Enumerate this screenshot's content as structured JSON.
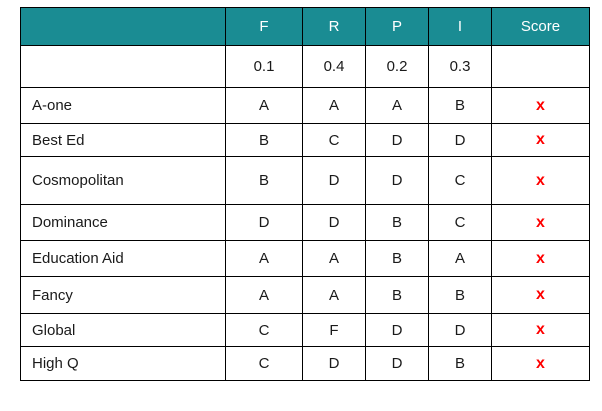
{
  "header": {
    "name": "",
    "columns": [
      "F",
      "R",
      "P",
      "I"
    ],
    "score": "Score"
  },
  "weights": {
    "name": "",
    "values": [
      "0.1",
      "0.4",
      "0.2",
      "0.3"
    ],
    "score": ""
  },
  "rows": [
    {
      "name": "A-one",
      "grades": [
        "A",
        "A",
        "A",
        "B"
      ],
      "score": "x"
    },
    {
      "name": "Best Ed",
      "grades": [
        "B",
        "C",
        "D",
        "D"
      ],
      "score": "x"
    },
    {
      "name": "Cosmopolitan",
      "grades": [
        "B",
        "D",
        "D",
        "C"
      ],
      "score": "x"
    },
    {
      "name": "Dominance",
      "grades": [
        "D",
        "D",
        "B",
        "C"
      ],
      "score": "x"
    },
    {
      "name": "Education Aid",
      "grades": [
        "A",
        "A",
        "B",
        "A"
      ],
      "score": "x"
    },
    {
      "name": "Fancy",
      "grades": [
        "A",
        "A",
        "B",
        "B"
      ],
      "score": "x"
    },
    {
      "name": "Global",
      "grades": [
        "C",
        "F",
        "D",
        "D"
      ],
      "score": "x"
    },
    {
      "name": "High Q",
      "grades": [
        "C",
        "D",
        "D",
        "B"
      ],
      "score": "x"
    }
  ],
  "colors": {
    "header_background": "#1a8c93",
    "header_text": "#ffffff",
    "score_mark": "#ff0000",
    "border": "#000000"
  }
}
